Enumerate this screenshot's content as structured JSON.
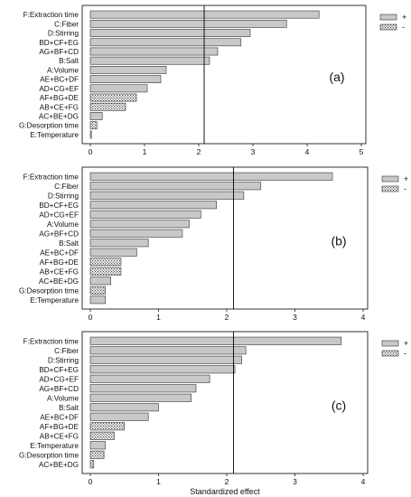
{
  "chart_data": [
    {
      "type": "bar",
      "orientation": "horizontal",
      "panel_label": "(a)",
      "xlim": [
        0,
        5
      ],
      "xticks": [
        0,
        1,
        2,
        3,
        4,
        5
      ],
      "reference_line": 2.1,
      "legend": {
        "placement": "top-right",
        "entries": [
          "+",
          "-"
        ]
      },
      "bars": [
        {
          "label": "F:Extraction time",
          "value": 4.22,
          "sign": "+"
        },
        {
          "label": "C:Fiber",
          "value": 3.62,
          "sign": "+"
        },
        {
          "label": "D:Stirring",
          "value": 2.95,
          "sign": "+"
        },
        {
          "label": "BD+CF+EG",
          "value": 2.78,
          "sign": "+"
        },
        {
          "label": "AG+BF+CD",
          "value": 2.35,
          "sign": "+"
        },
        {
          "label": "B:Salt",
          "value": 2.2,
          "sign": "+"
        },
        {
          "label": "A:Volume",
          "value": 1.4,
          "sign": "+"
        },
        {
          "label": "AE+BC+DF",
          "value": 1.3,
          "sign": "+"
        },
        {
          "label": "AD+CG+EF",
          "value": 1.05,
          "sign": "+"
        },
        {
          "label": "AF+BG+DE",
          "value": 0.85,
          "sign": "-"
        },
        {
          "label": "AB+CE+FG",
          "value": 0.65,
          "sign": "-"
        },
        {
          "label": "AC+BE+DG",
          "value": 0.22,
          "sign": "+"
        },
        {
          "label": "G:Desorption time",
          "value": 0.12,
          "sign": "-"
        },
        {
          "label": "E:Temperature",
          "value": 0.02,
          "sign": "+"
        }
      ]
    },
    {
      "type": "bar",
      "orientation": "horizontal",
      "panel_label": "(b)",
      "xlim": [
        0,
        4
      ],
      "xticks": [
        0,
        1,
        2,
        3,
        4
      ],
      "reference_line": 2.1,
      "legend": {
        "placement": "top-right",
        "entries": [
          "+",
          "-"
        ]
      },
      "bars": [
        {
          "label": "F:Extraction time",
          "value": 3.55,
          "sign": "+"
        },
        {
          "label": "C:Fiber",
          "value": 2.5,
          "sign": "+"
        },
        {
          "label": "D:Stirring",
          "value": 2.25,
          "sign": "+"
        },
        {
          "label": "BD+CF+EG",
          "value": 1.85,
          "sign": "+"
        },
        {
          "label": "AD+CG+EF",
          "value": 1.62,
          "sign": "+"
        },
        {
          "label": "A:Volume",
          "value": 1.45,
          "sign": "+"
        },
        {
          "label": "AG+BF+CD",
          "value": 1.35,
          "sign": "+"
        },
        {
          "label": "B:Salt",
          "value": 0.85,
          "sign": "+"
        },
        {
          "label": "AE+BC+DF",
          "value": 0.68,
          "sign": "+"
        },
        {
          "label": "AF+BG+DE",
          "value": 0.45,
          "sign": "-"
        },
        {
          "label": "AB+CE+FG",
          "value": 0.45,
          "sign": "-"
        },
        {
          "label": "AC+BE+DG",
          "value": 0.3,
          "sign": "+"
        },
        {
          "label": "G:Desorption time",
          "value": 0.22,
          "sign": "-"
        },
        {
          "label": "E:Temperature",
          "value": 0.22,
          "sign": "+"
        }
      ]
    },
    {
      "type": "bar",
      "orientation": "horizontal",
      "panel_label": "(c)",
      "xlim": [
        0,
        4
      ],
      "xticks": [
        0,
        1,
        2,
        3,
        4
      ],
      "xlabel": "Standardized effect",
      "reference_line": 2.1,
      "legend": {
        "placement": "top-right",
        "entries": [
          "+",
          "-"
        ]
      },
      "bars": [
        {
          "label": "F:Extraction time",
          "value": 3.68,
          "sign": "+"
        },
        {
          "label": "C:Fiber",
          "value": 2.28,
          "sign": "+"
        },
        {
          "label": "D:Stirring",
          "value": 2.22,
          "sign": "+"
        },
        {
          "label": "BD+CF+EG",
          "value": 2.12,
          "sign": "+"
        },
        {
          "label": "AD+CG+EF",
          "value": 1.75,
          "sign": "+"
        },
        {
          "label": "AG+BF+CD",
          "value": 1.55,
          "sign": "+"
        },
        {
          "label": "A:Volume",
          "value": 1.48,
          "sign": "+"
        },
        {
          "label": "B:Salt",
          "value": 1.0,
          "sign": "+"
        },
        {
          "label": "AE+BC+DF",
          "value": 0.85,
          "sign": "+"
        },
        {
          "label": "AF+BG+DE",
          "value": 0.5,
          "sign": "-"
        },
        {
          "label": "AB+CE+FG",
          "value": 0.35,
          "sign": "-"
        },
        {
          "label": "E:Temperature",
          "value": 0.22,
          "sign": "+"
        },
        {
          "label": "G:Desorption time",
          "value": 0.2,
          "sign": "-"
        },
        {
          "label": "AC+BE+DG",
          "value": 0.05,
          "sign": "-"
        }
      ]
    }
  ]
}
